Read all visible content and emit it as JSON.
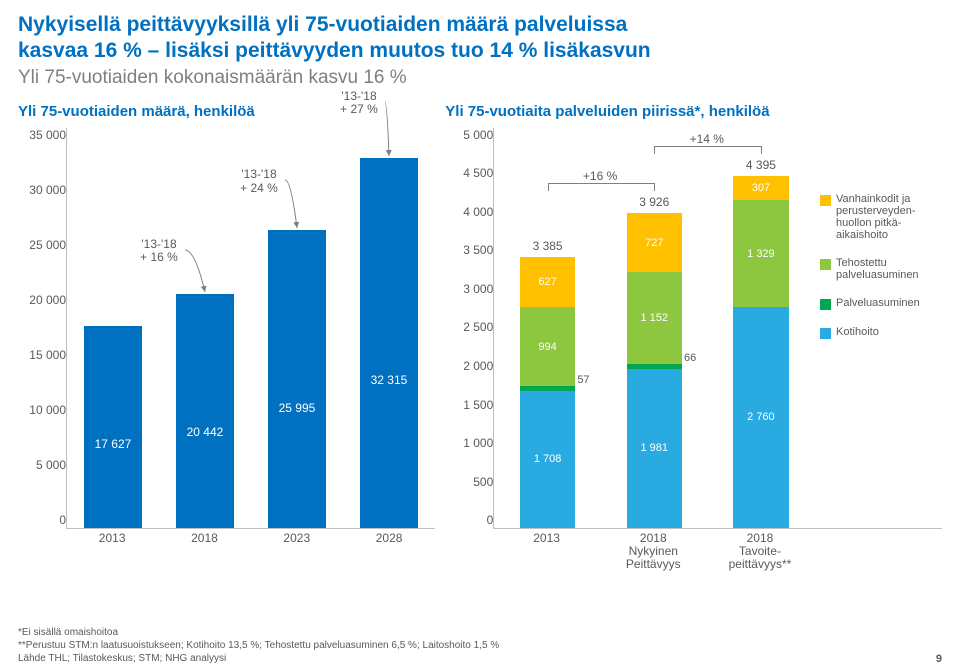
{
  "title_line1": "Nykyisellä peittävyyksillä yli 75-vuotiaiden määrä palveluissa",
  "title_line2": "kasvaa 16 % – lisäksi peittävyyden muutos tuo 14 % lisäkasvun",
  "subtitle": "Yli 75-vuotiaiden kokonaismäärän kasvu 16 %",
  "left_chart": {
    "title": "Yli 75-vuotiaiden määrä, henkilöä",
    "type": "bar",
    "y_max": 35000,
    "y_ticks": [
      "35 000",
      "30 000",
      "25 000",
      "20 000",
      "15 000",
      "10 000",
      "5 000",
      "0"
    ],
    "categories": [
      "2013",
      "2018",
      "2023",
      "2028"
    ],
    "values": [
      17627,
      20442,
      25995,
      32315
    ],
    "value_labels": [
      "17 627",
      "20 442",
      "25 995",
      "32 315"
    ],
    "bar_color": "#0070c0",
    "callouts": [
      {
        "text_l1": "'13-'18",
        "text_l2": "+ 16 %",
        "bar_index": 1
      },
      {
        "text_l1": "'13-'18",
        "text_l2": "+ 24 %",
        "bar_index": 2
      },
      {
        "text_l1": "'13-'18",
        "text_l2": "+ 27 %",
        "bar_index": 3
      }
    ]
  },
  "right_chart": {
    "title": "Yli 75-vuotiaita palveluiden piirissä*, henkilöä",
    "type": "stacked-bar",
    "y_max": 5000,
    "y_ticks": [
      "5 000",
      "4 500",
      "4 000",
      "3 500",
      "3 000",
      "2 500",
      "2 000",
      "1 500",
      "1 000",
      "500",
      "0"
    ],
    "categories_l1": [
      "2013",
      "2018",
      "2018"
    ],
    "categories_l2": [
      "",
      "Nykyinen",
      "Tavoite-"
    ],
    "categories_l3": [
      "",
      "Peittävyys",
      "peittävyys**"
    ],
    "series": [
      {
        "name": "Kotihoito",
        "color": "#29abe2",
        "values": [
          1708,
          1981,
          2760
        ]
      },
      {
        "name": "Palveluasuminen",
        "color": "#00a651",
        "values": [
          57,
          66,
          0
        ]
      },
      {
        "name": "Tehostettu palveluasuminen",
        "color": "#8dc63f",
        "values": [
          994,
          1152,
          1329
        ]
      },
      {
        "name": "Vanhainkodit ja perusterveyden-huollon pitkä-aikaishoito",
        "color": "#ffc000",
        "values": [
          627,
          727,
          307
        ]
      }
    ],
    "totals": [
      "3 385",
      "3 926",
      "4 395"
    ],
    "seg_labels": [
      [
        "1 708",
        "57",
        "994",
        "627"
      ],
      [
        "1 981",
        "66",
        "1 152",
        "727"
      ],
      [
        "2 760",
        "",
        "1 329",
        "307"
      ]
    ],
    "pct_labels": [
      {
        "text": "+16 %",
        "between": [
          0,
          1
        ]
      },
      {
        "text": "+14 %",
        "between": [
          1,
          2
        ]
      }
    ],
    "legend": [
      {
        "color": "#ffc000",
        "label": "Vanhainkodit ja perusterveyden-huollon pitkä-aikaishoito"
      },
      {
        "color": "#8dc63f",
        "label": "Tehostettu palveluasuminen"
      },
      {
        "color": "#00a651",
        "label": "Palveluasuminen"
      },
      {
        "color": "#29abe2",
        "label": "Kotihoito"
      }
    ]
  },
  "footnotes": [
    "*Ei sisällä omaishoitoa",
    "**Perustuu STM:n laatusuoistukseen; Kotihoito 13,5 %; Tehostettu palveluasuminen 6,5 %; Laitoshoito 1,5 %",
    "Lähde THL; Tilastokeskus; STM; NHG analyysi"
  ],
  "page_number": "9"
}
